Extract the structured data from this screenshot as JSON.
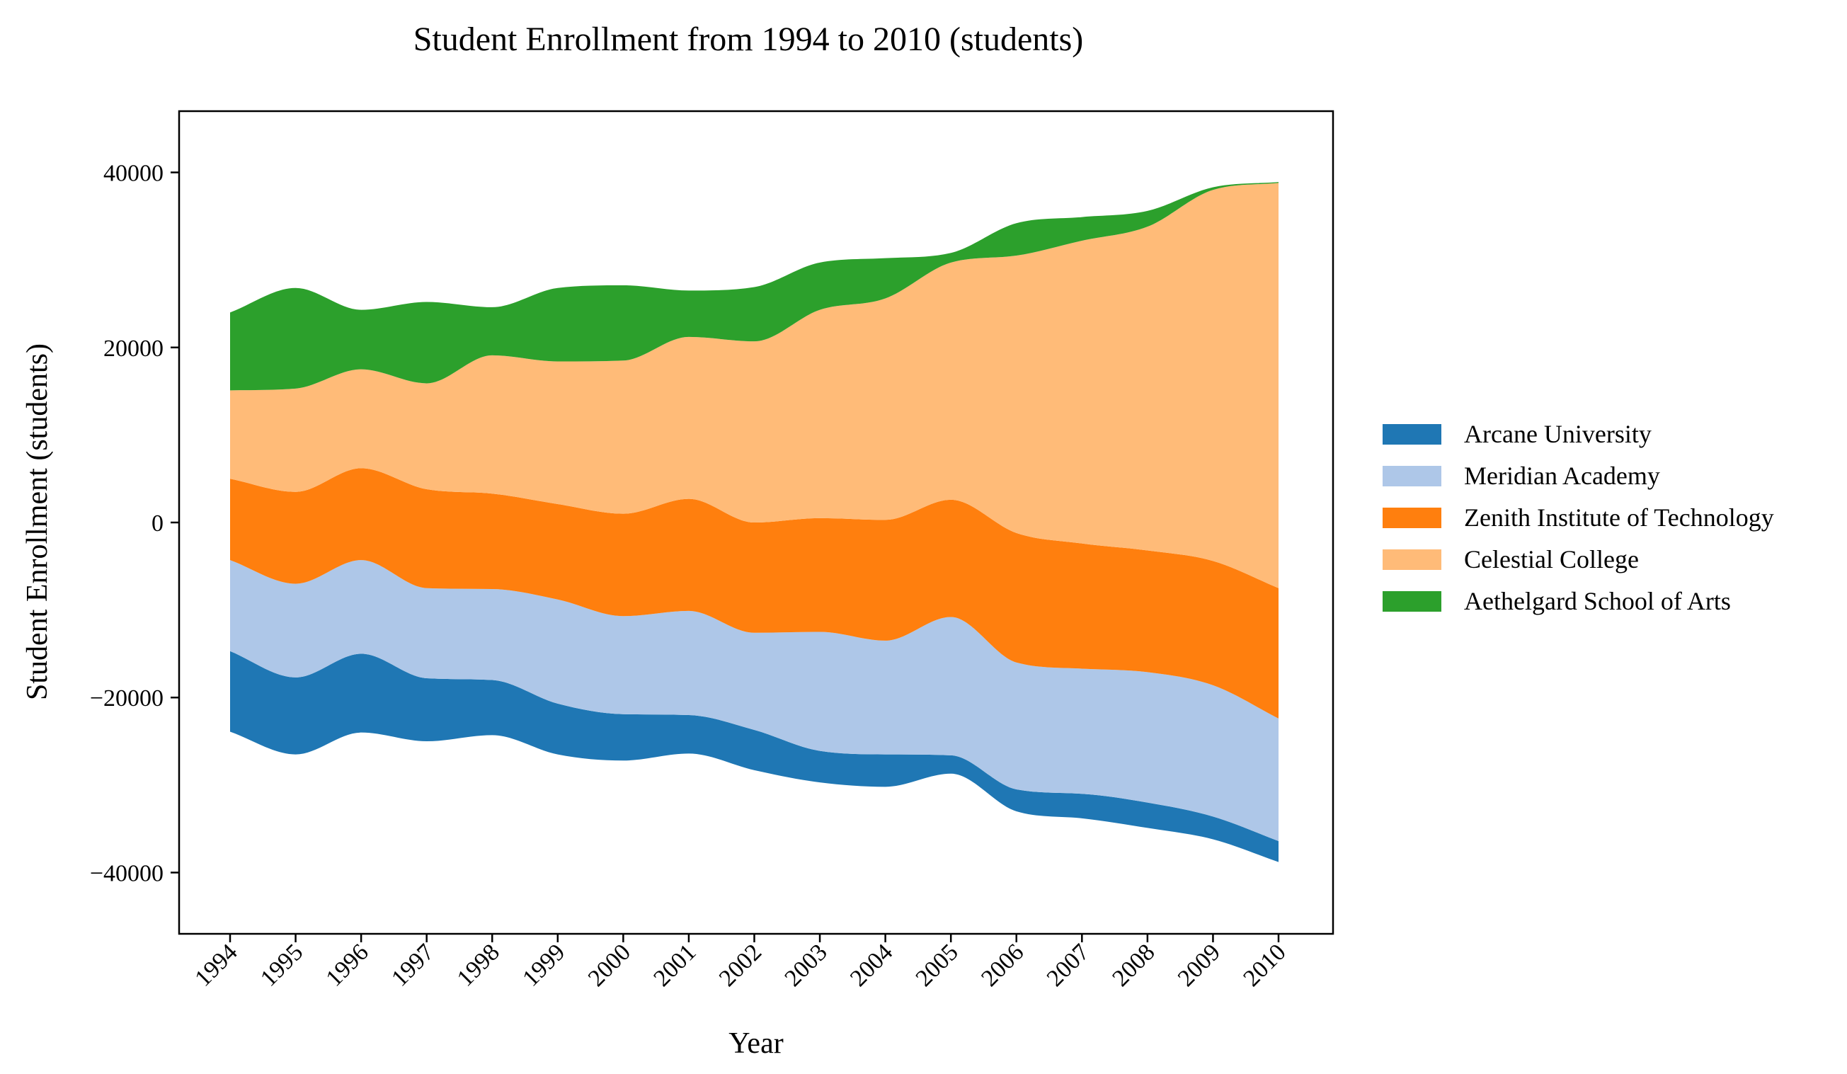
{
  "chart_data": {
    "type": "area",
    "subtype": "streamgraph",
    "title": "Student Enrollment from 1994 to 2010 (students)",
    "xlabel": "Year",
    "ylabel": "Student Enrollment (students)",
    "ylim": [
      -47000,
      47000
    ],
    "yticks": [
      -40000,
      -20000,
      0,
      20000,
      40000
    ],
    "ytick_labels": [
      "−40000",
      "−20000",
      "0",
      "20000",
      "40000"
    ],
    "x": [
      "1994",
      "1995",
      "1996",
      "1997",
      "1998",
      "1999",
      "2000",
      "2001",
      "2002",
      "2003",
      "2004",
      "2005",
      "2006",
      "2007",
      "2008",
      "2009",
      "2010"
    ],
    "baseline": [
      -23900,
      -26500,
      -24000,
      -25000,
      -24300,
      -26500,
      -27200,
      -26400,
      -28300,
      -29700,
      -30200,
      -28700,
      -33000,
      -33800,
      -34900,
      -36200,
      -38800
    ],
    "series": [
      {
        "name": "Arcane University",
        "color": "#1f77b4",
        "values": [
          9200,
          8800,
          9000,
          7200,
          6300,
          5800,
          5300,
          4400,
          4600,
          3600,
          3700,
          2100,
          2500,
          2800,
          2900,
          2600,
          2400
        ]
      },
      {
        "name": "Meridian Academy",
        "color": "#aec7e8",
        "values": [
          10400,
          10700,
          10700,
          10300,
          10400,
          11900,
          11200,
          11900,
          11100,
          13600,
          13000,
          15800,
          14500,
          14300,
          14900,
          15000,
          14000
        ]
      },
      {
        "name": "Zenith Institute of Technology",
        "color": "#ff7f0e",
        "values": [
          9300,
          10500,
          10500,
          11300,
          10900,
          10900,
          11700,
          12800,
          12600,
          13000,
          13800,
          13400,
          14800,
          14300,
          13900,
          14200,
          14900
        ]
      },
      {
        "name": "Celestial College",
        "color": "#ffbb78",
        "values": [
          10100,
          11800,
          11300,
          12100,
          15800,
          16300,
          17500,
          18500,
          20700,
          23800,
          25300,
          27100,
          31700,
          34600,
          37000,
          42400,
          46300
        ]
      },
      {
        "name": "Aethelgard School of Arts",
        "color": "#2ca02c",
        "values": [
          8900,
          11500,
          6800,
          9300,
          5500,
          8400,
          8600,
          5300,
          6200,
          5400,
          4600,
          1100,
          3700,
          2700,
          1800,
          300,
          100
        ]
      }
    ],
    "legend": {
      "position": "right",
      "order": [
        "Arcane University",
        "Meridian Academy",
        "Zenith Institute of Technology",
        "Celestial College",
        "Aethelgard School of Arts"
      ]
    },
    "grid": false
  }
}
